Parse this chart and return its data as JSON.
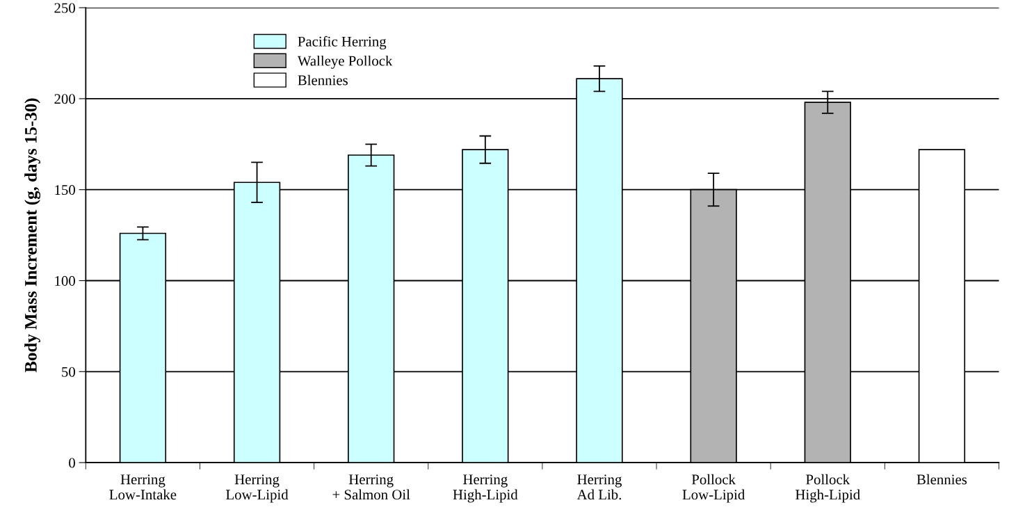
{
  "chart_data": {
    "type": "bar",
    "ylabel": "Body Mass Increment (g, days 15-30)",
    "categories": [
      "Herring\nLow-Intake",
      "Herring\nLow-Lipid",
      "Herring\n+ Salmon Oil",
      "Herring\nHigh-Lipid",
      "Herring\nAd Lib.",
      "Pollock\nLow-Lipid",
      "Pollock\nHigh-Lipid",
      "Blennies"
    ],
    "series": [
      {
        "name": "Pacific Herring",
        "color": "#ccffff",
        "values": [
          126,
          154,
          169,
          172,
          211,
          null,
          null,
          null
        ],
        "errors": [
          3.5,
          11,
          6,
          7.5,
          7,
          null,
          null,
          null
        ]
      },
      {
        "name": "Walleye Pollock",
        "color": "#b3b3b3",
        "values": [
          null,
          null,
          null,
          null,
          null,
          150,
          198,
          null
        ],
        "errors": [
          null,
          null,
          null,
          null,
          null,
          9,
          6,
          null
        ]
      },
      {
        "name": "Blennies",
        "color": "#ffffff",
        "values": [
          null,
          null,
          null,
          null,
          null,
          null,
          null,
          172
        ]
      }
    ],
    "ylim": [
      0,
      250
    ],
    "yticks": [
      0,
      50,
      100,
      150,
      200,
      250
    ],
    "grid": "y",
    "legend": "top left"
  }
}
